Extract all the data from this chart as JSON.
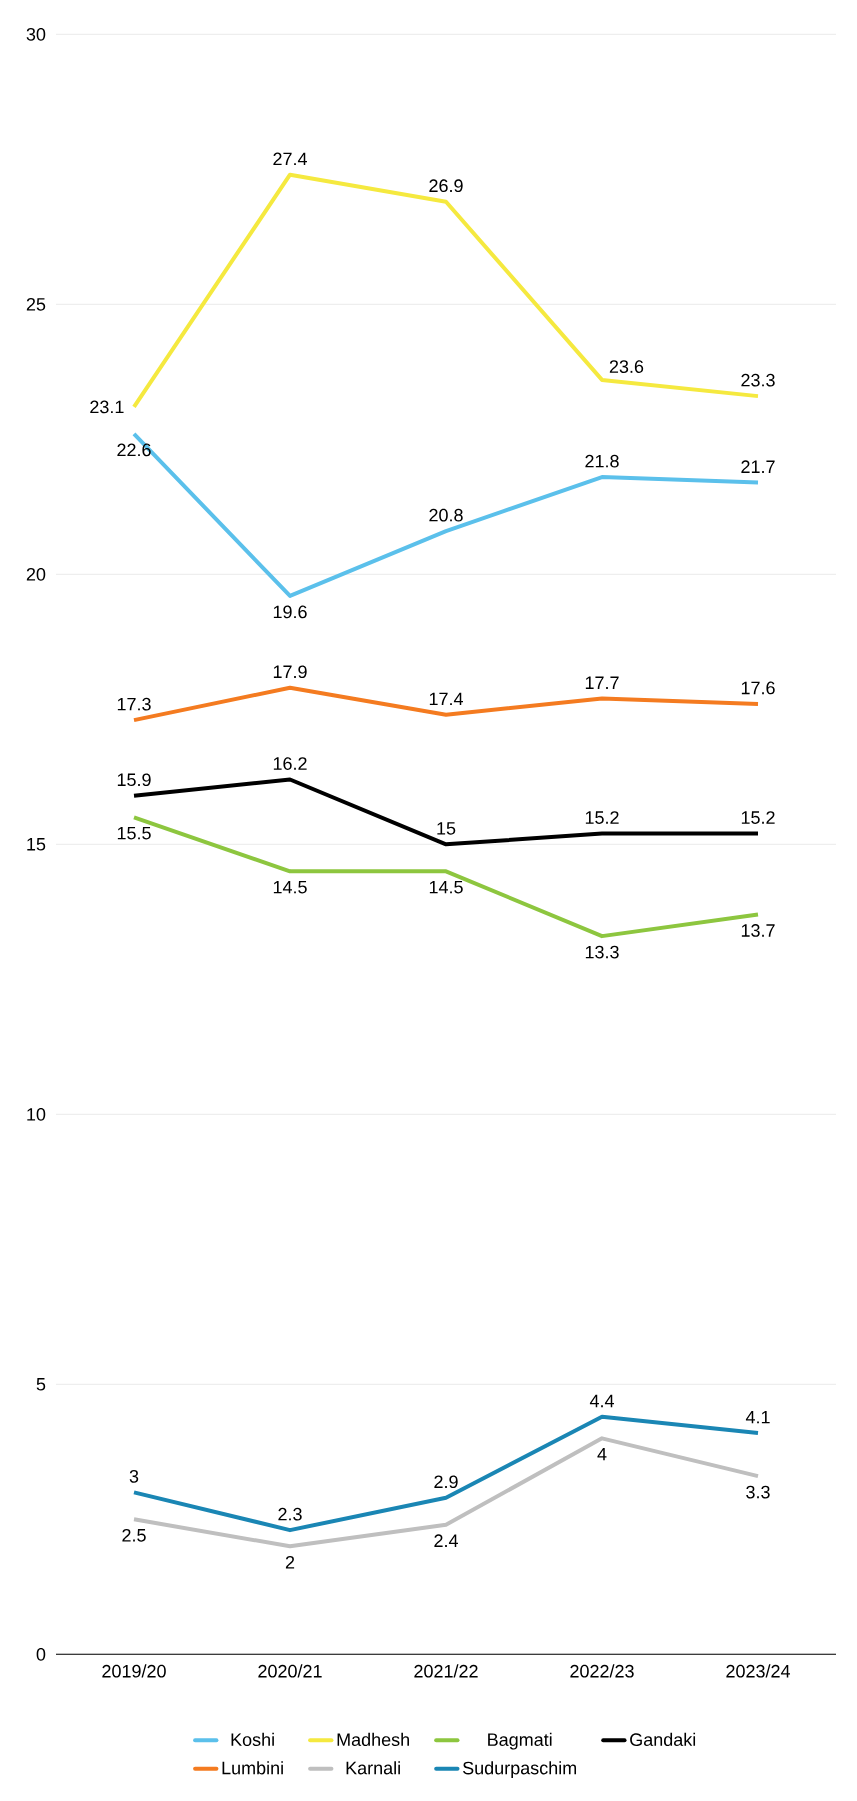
{
  "chart_data": {
    "type": "line",
    "categories": [
      "2019/20",
      "2020/21",
      "2021/22",
      "2022/23",
      "2023/24"
    ],
    "series": [
      {
        "name": "Koshi",
        "color": "#5bc0eb",
        "values": [
          22.6,
          19.6,
          20.8,
          21.8,
          21.7
        ]
      },
      {
        "name": "Madhesh",
        "color": "#f5e93f",
        "values": [
          23.1,
          27.4,
          26.9,
          23.6,
          23.3
        ]
      },
      {
        "name": "Bagmati",
        "color": "#8dc63f",
        "values": [
          15.5,
          14.5,
          14.5,
          13.3,
          13.7
        ]
      },
      {
        "name": "Gandaki",
        "color": "#000000",
        "values": [
          15.9,
          16.2,
          15,
          15.2,
          15.2
        ]
      },
      {
        "name": "Lumbini",
        "color": "#f47b20",
        "values": [
          17.3,
          17.9,
          17.4,
          17.7,
          17.6
        ]
      },
      {
        "name": "Karnali",
        "color": "#bfbfbf",
        "values": [
          2.5,
          2,
          2.4,
          4,
          3.3
        ]
      },
      {
        "name": "Sudurpaschim",
        "color": "#1a86b4",
        "values": [
          3,
          2.3,
          2.9,
          4.4,
          4.1
        ]
      }
    ],
    "ylim": [
      0,
      30
    ],
    "yticks": [
      0,
      5,
      10,
      15,
      20,
      25,
      30
    ],
    "grid": "y",
    "legend": "bottom",
    "data_labels": true,
    "marker": "none",
    "line_style": "solid"
  }
}
